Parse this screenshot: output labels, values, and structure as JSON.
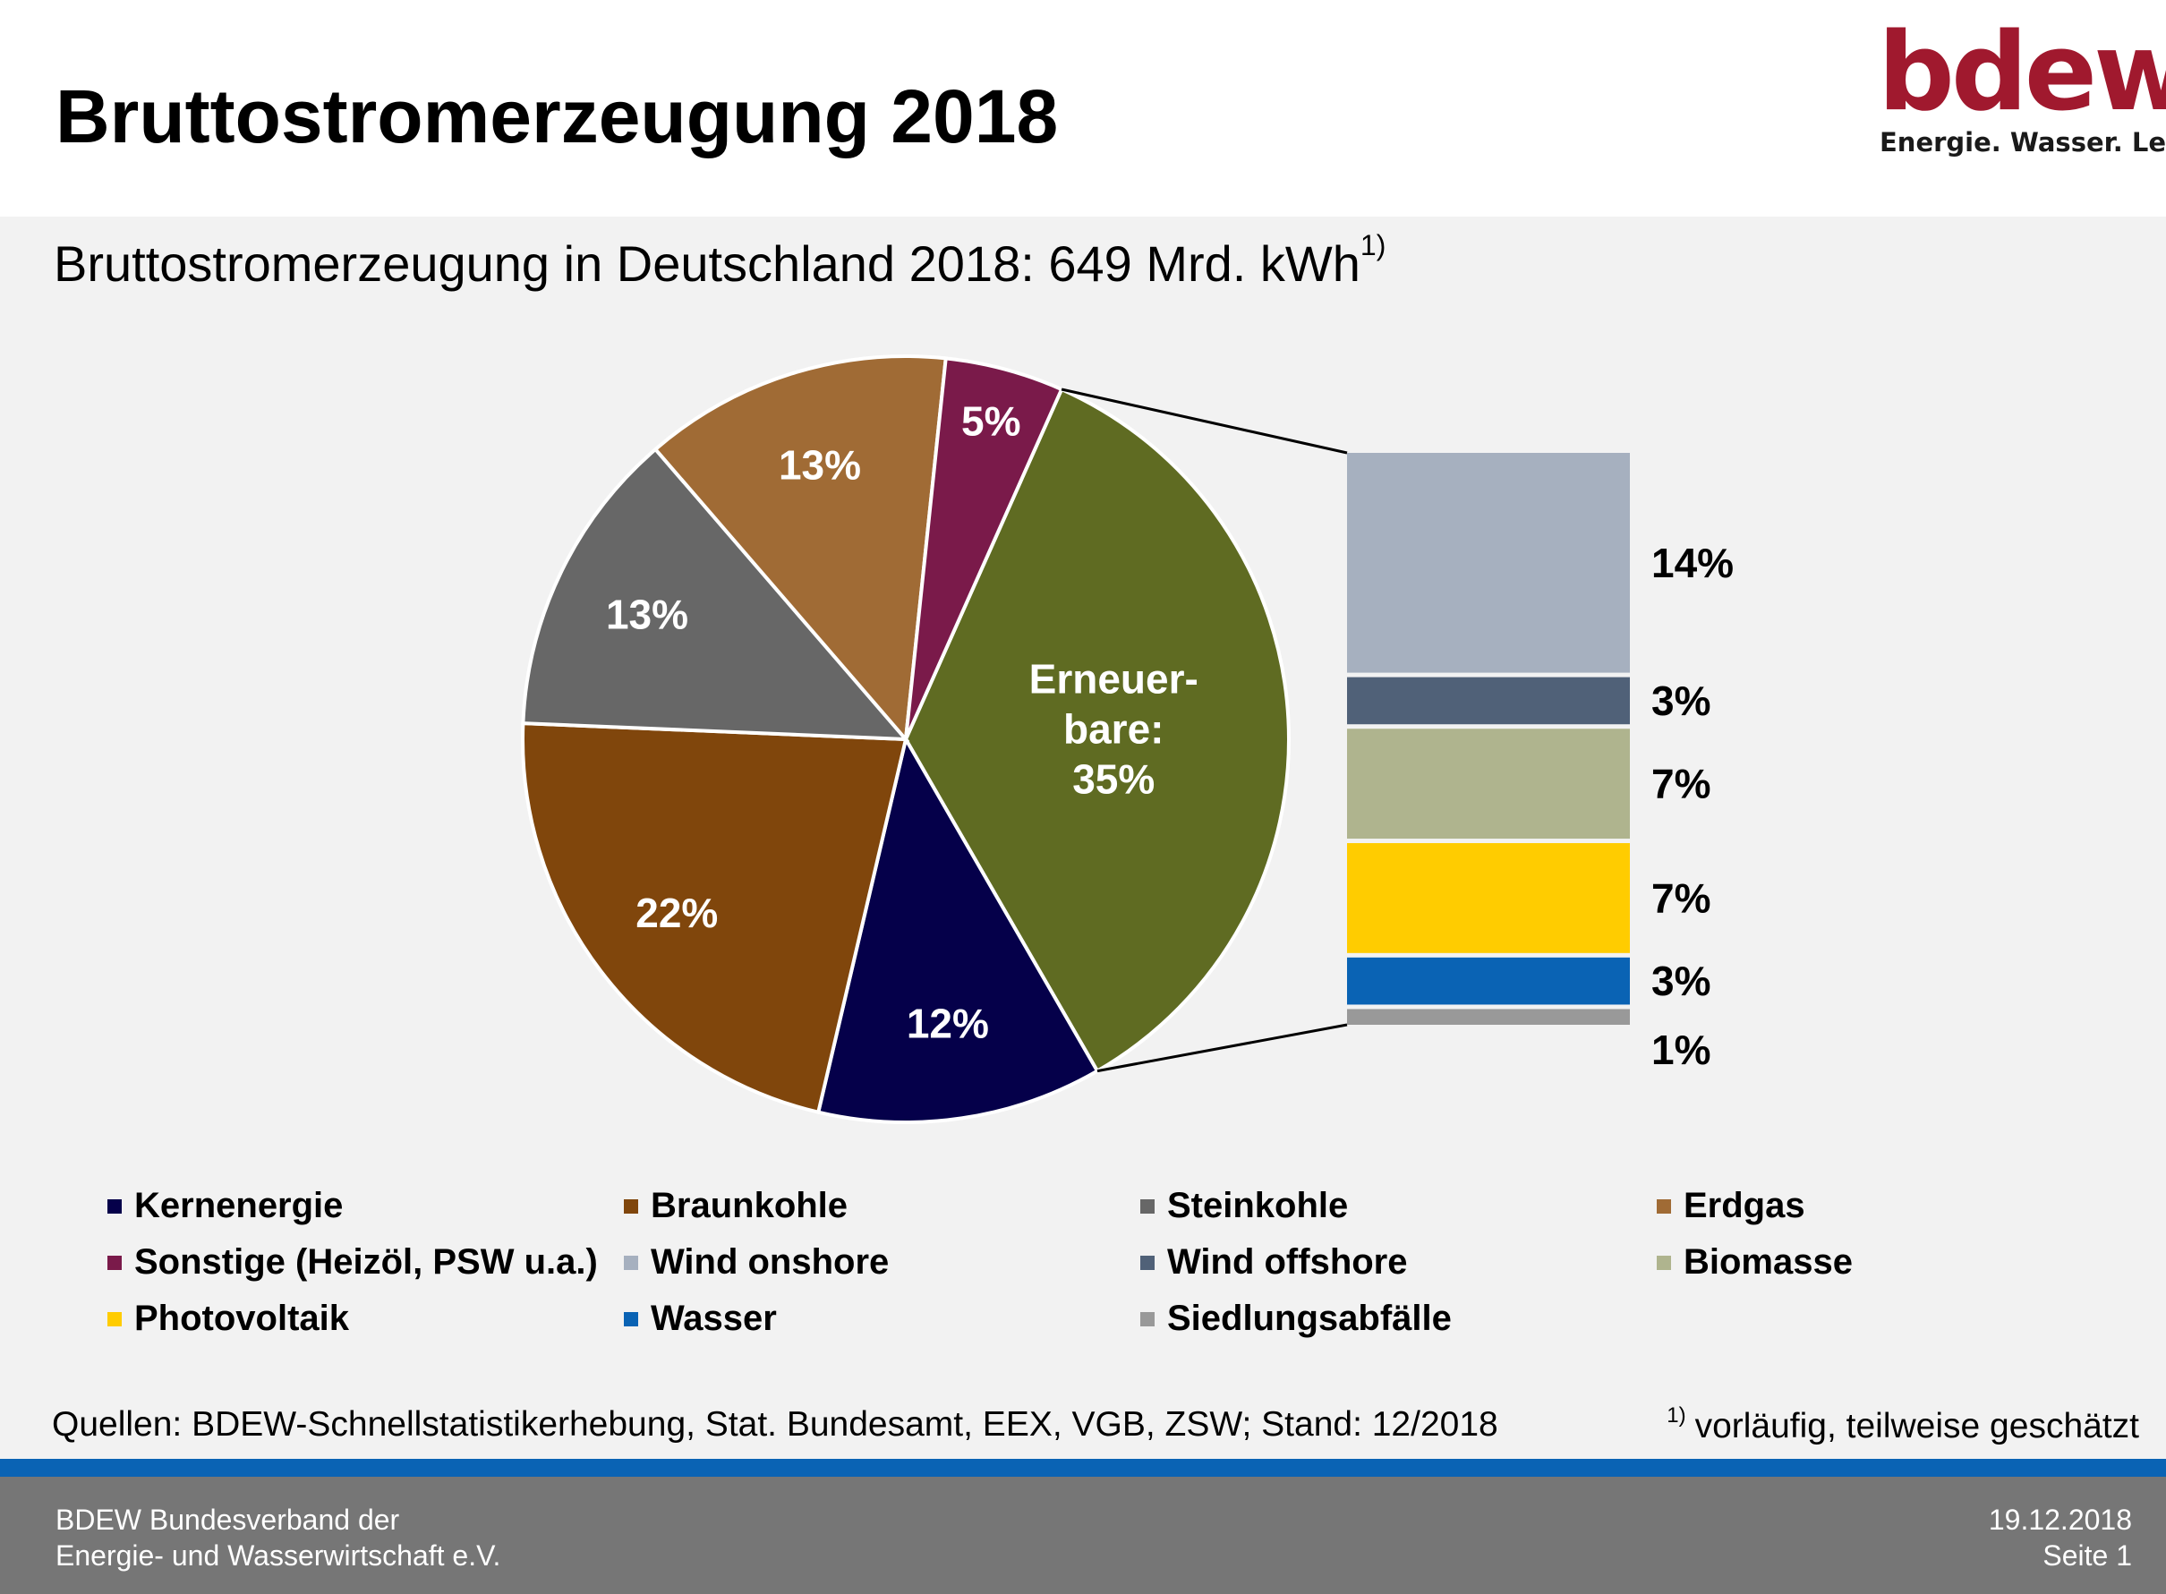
{
  "header": {
    "title": "Bruttostromerzeugung 2018",
    "logo_text": "bdew",
    "logo_tagline": "Energie. Wasser. Leben."
  },
  "subtitle": {
    "text": "Bruttostromerzeugung in Deutschland 2018: 649 Mrd. kWh",
    "footnote_marker": "1)"
  },
  "chart_data": {
    "type": "pie",
    "title": "Bruttostromerzeugung in Deutschland 2018: 649 Mrd. kWh",
    "slices": [
      {
        "name": "Erneuerbare",
        "label_lines": [
          "Erneuer-",
          "bare:",
          "35%"
        ],
        "value": 35,
        "color": "#5f6b22"
      },
      {
        "name": "Kernenergie",
        "label": "12%",
        "value": 12,
        "color": "#05004a"
      },
      {
        "name": "Braunkohle",
        "label": "22%",
        "value": 22,
        "color": "#80460c"
      },
      {
        "name": "Steinkohle",
        "label": "13%",
        "value": 13,
        "color": "#676767"
      },
      {
        "name": "Erdgas",
        "label": "13%",
        "value": 13,
        "color": "#a06b35"
      },
      {
        "name": "Sonstige (Heizöl, PSW u.a.)",
        "label": "5%",
        "value": 5,
        "color": "#7a1a4a"
      }
    ],
    "breakdown": [
      {
        "name": "Wind onshore",
        "label": "14%",
        "value": 14,
        "color": "#a6b0bf"
      },
      {
        "name": "Wind offshore",
        "label": "3%",
        "value": 3,
        "color": "#506178"
      },
      {
        "name": "Biomasse",
        "label": "7%",
        "value": 7,
        "color": "#afb48e"
      },
      {
        "name": "Photovoltaik",
        "label": "7%",
        "value": 7,
        "color": "#ffcc00"
      },
      {
        "name": "Wasser",
        "label": "3%",
        "value": 3,
        "color": "#0a63b4"
      },
      {
        "name": "Siedlungsabfälle",
        "label": "1%",
        "value": 1,
        "color": "#999999"
      }
    ]
  },
  "legend": [
    {
      "name": "Kernenergie",
      "color": "#05004a"
    },
    {
      "name": "Braunkohle",
      "color": "#80460c"
    },
    {
      "name": "Steinkohle",
      "color": "#676767"
    },
    {
      "name": "Erdgas",
      "color": "#a06b35"
    },
    {
      "name": "Sonstige (Heizöl, PSW u.a.)",
      "color": "#7a1a4a"
    },
    {
      "name": "Wind onshore",
      "color": "#a6b0bf"
    },
    {
      "name": "Wind offshore",
      "color": "#506178"
    },
    {
      "name": "Biomasse",
      "color": "#afb48e"
    },
    {
      "name": "Photovoltaik",
      "color": "#ffcc00"
    },
    {
      "name": "Wasser",
      "color": "#0a63b4"
    },
    {
      "name": "Siedlungsabfälle",
      "color": "#999999"
    }
  ],
  "source": {
    "text": "Quellen: BDEW-Schnellstatistikerhebung, Stat. Bundesamt, EEX, VGB, ZSW; Stand: 12/2018",
    "footnote_marker": "1)",
    "footnote_text": "vorläufig, teilweise geschätzt"
  },
  "footer": {
    "org_line1": "BDEW Bundesverband der",
    "org_line2": "Energie- und Wasserwirtschaft e.V.",
    "date": "19.12.2018",
    "page": "Seite 1"
  }
}
